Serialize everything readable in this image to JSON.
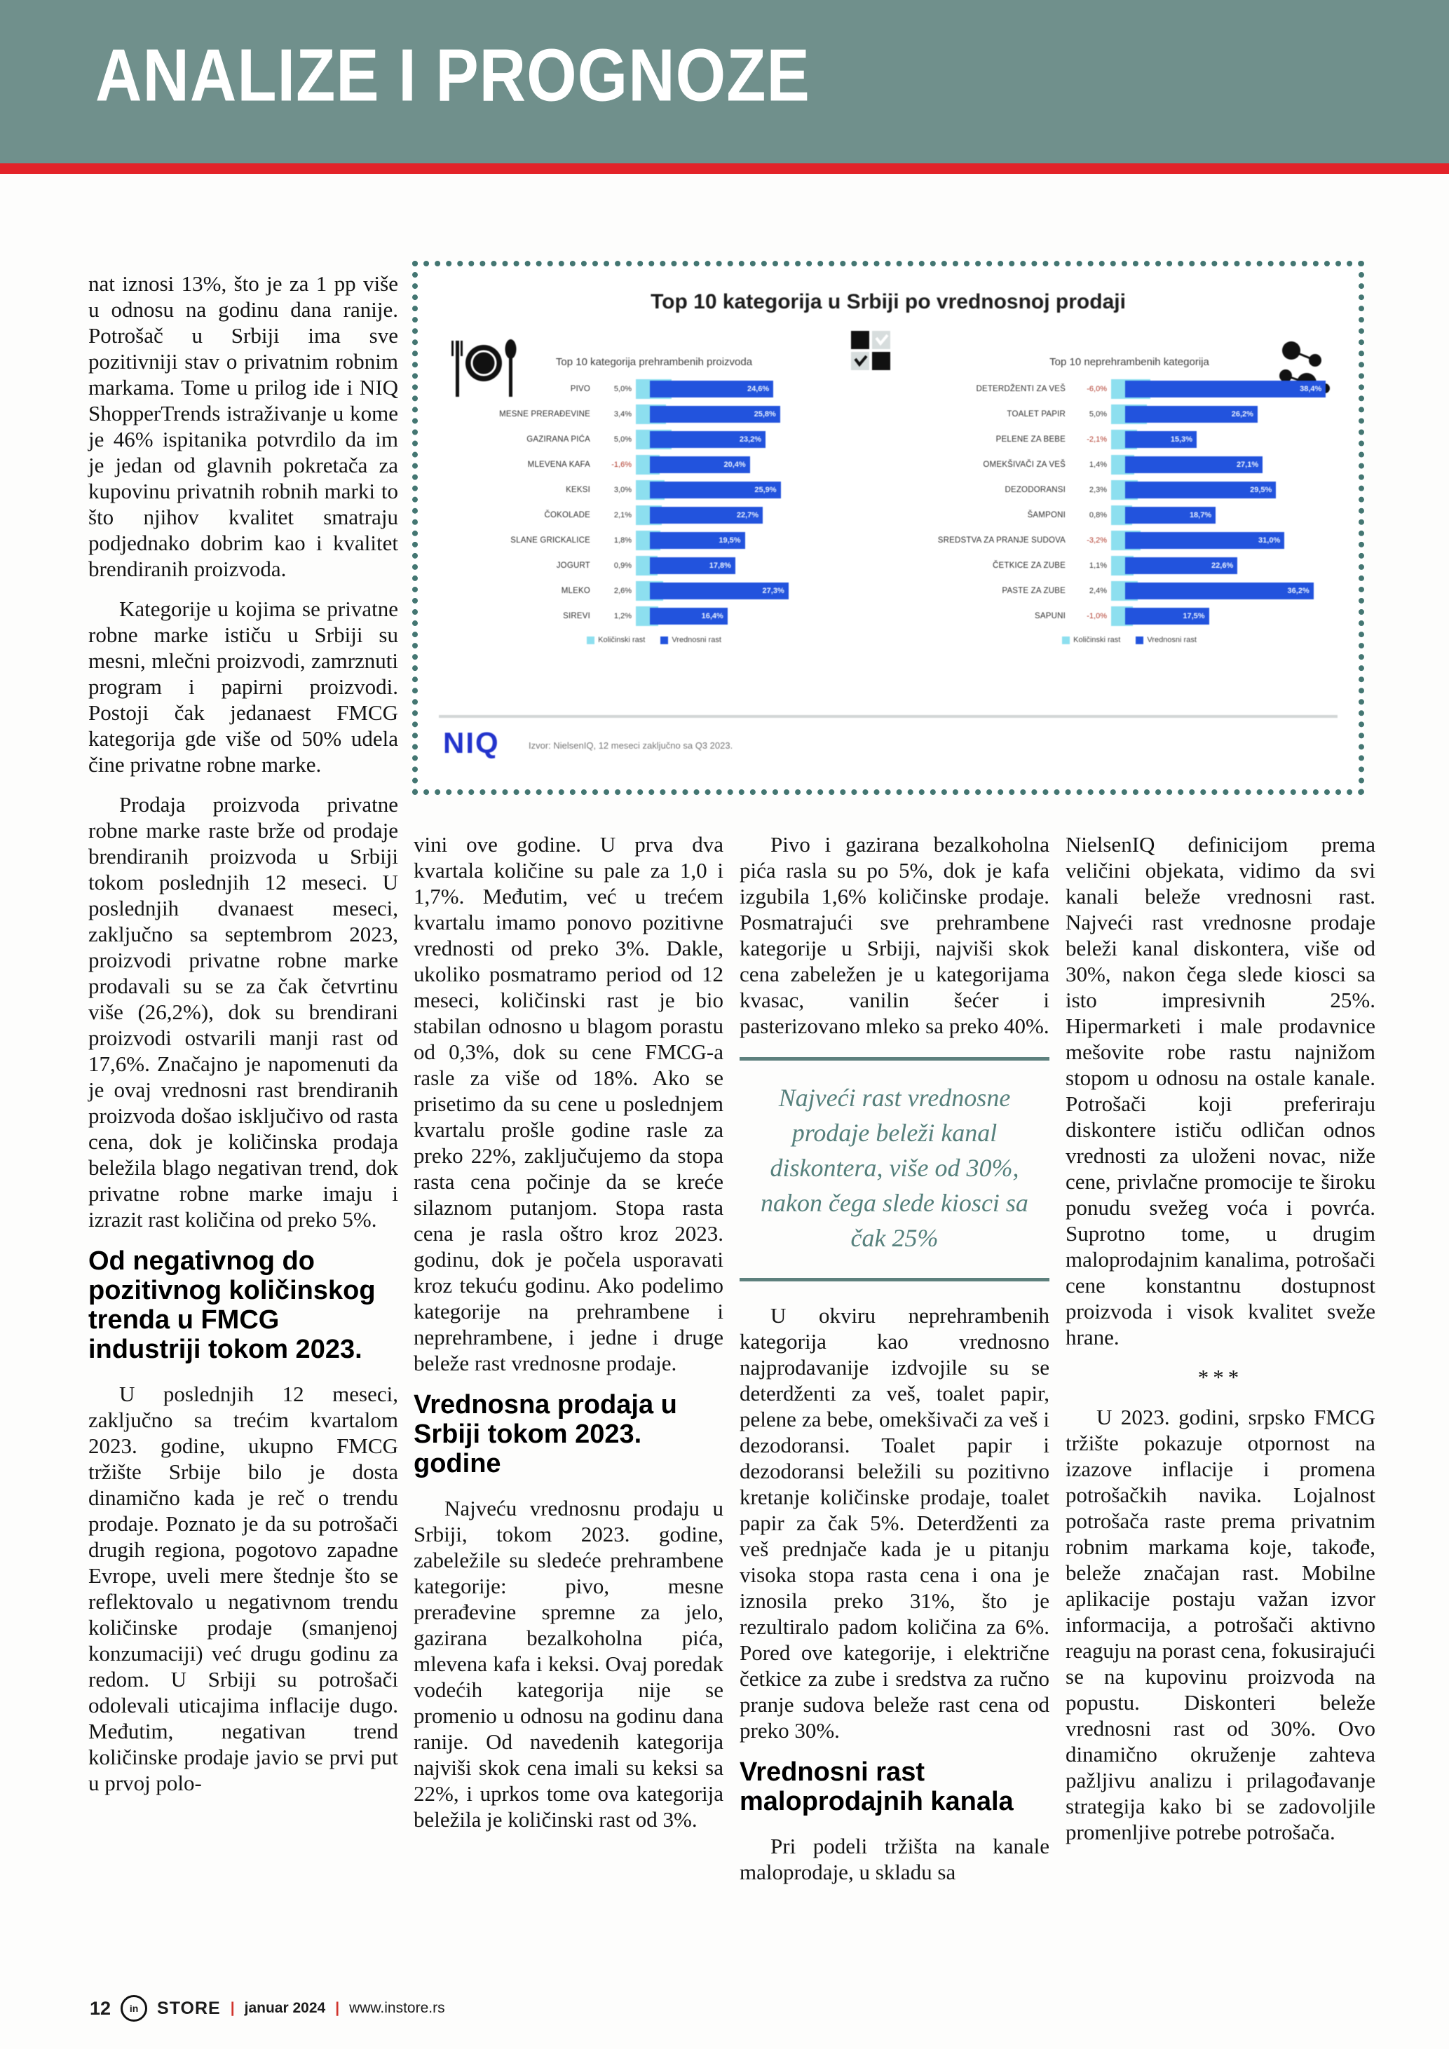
{
  "header": {
    "title": "ANALIZE I PROGNOZE"
  },
  "chart_panel": {
    "main_title": "Top 10 kategorija u Srbiji po vrednosnoj prodaji",
    "niq_logo": "NIQ",
    "source_text": "Izvor: NielsenIQ, 12 meseci zaključno sa Q3 2023.",
    "colors": {
      "volume_bar": "#8ddfef",
      "value_bar": "#2253dd",
      "border": "#447672",
      "accent_red": "#e32329",
      "masthead": "#70908c",
      "quote": "#56807c"
    }
  },
  "chart_data": [
    {
      "type": "bar",
      "orientation": "horizontal",
      "title": "Top 10 kategorija prehrambenih proizvoda",
      "xlim": [
        0,
        42
      ],
      "categories": [
        "PIVO",
        "MESNE PRERAĐEVINE",
        "GAZIRANA PIĆA",
        "MLEVENA KAFA",
        "KEKSI",
        "ČOKOLADE",
        "SLANE GRICKALICE",
        "JOGURT",
        "MLEKO",
        "SIREVI"
      ],
      "series": [
        {
          "name": "Količinski rast",
          "color": "#8ddfef",
          "values": [
            5.0,
            3.4,
            5.0,
            -1.6,
            3.0,
            2.1,
            1.8,
            0.9,
            2.6,
            1.2
          ]
        },
        {
          "name": "Vrednosni rast",
          "color": "#2253dd",
          "values": [
            24.6,
            25.8,
            23.2,
            20.4,
            25.9,
            22.7,
            19.5,
            17.8,
            27.3,
            16.4
          ]
        }
      ],
      "legend_position": "bottom",
      "grid": false
    },
    {
      "type": "bar",
      "orientation": "horizontal",
      "title": "Top 10 neprehrambenih kategorija",
      "xlim": [
        0,
        42
      ],
      "categories": [
        "DETERDŽENTI ZA VEŠ",
        "TOALET PAPIR",
        "PELENE ZA BEBE",
        "OMEKŠIVAČI ZA VEŠ",
        "DEZODORANSI",
        "ŠAMPONI",
        "SREDSTVA ZA PRANJE SUDOVA",
        "ČETKICE ZA ZUBE",
        "PASTE ZA ZUBE",
        "SAPUNI"
      ],
      "series": [
        {
          "name": "Količinski rast",
          "color": "#8ddfef",
          "values": [
            -6.0,
            5.0,
            -2.1,
            1.4,
            2.3,
            0.8,
            -3.2,
            1.1,
            2.4,
            -1.0
          ]
        },
        {
          "name": "Vrednosni rast",
          "color": "#2253dd",
          "values": [
            38.4,
            26.2,
            15.3,
            27.1,
            29.5,
            18.7,
            31.0,
            22.6,
            36.2,
            17.5
          ]
        }
      ],
      "legend_position": "bottom",
      "grid": false
    }
  ],
  "article": {
    "col1": {
      "p1": "nat iznosi 13%, što je za 1 pp više u odnosu na godinu dana ranije. Potrošač u Srbiji ima sve pozitivniji stav o privatnim robnim markama. Tome u prilog ide i NIQ ShopperTrends istraživanje u kome je 46% ispitanika potvrdilo da im je jedan od glavnih pokretača za kupovinu privatnih robnih marki to što njihov kvalitet smatraju podjednako dobrim kao i kvalitet brendiranih proizvoda.",
      "p2": "Kategorije u kojima se privatne robne marke ističu u Srbiji su mesni, mlečni proizvodi, zamrznuti program i papirni proizvodi. Postoji čak jedanaest FMCG kategorija gde više od 50% udela čine privatne robne marke.",
      "p3": "Prodaja proizvoda privatne robne marke raste brže od prodaje brendiranih proizvoda u Srbiji tokom poslednjih 12 meseci. U poslednjih dvanaest meseci, zaključno sa septembrom 2023, proizvodi privatne robne marke prodavali su se za čak četvrtinu više (26,2%), dok su brendirani proizvodi ostvarili manji rast od 17,6%. Značajno je napomenuti da je ovaj vrednosni rast brendiranih proizvoda došao isključivo od rasta cena, dok je količinska prodaja beležila blago negativan trend, dok privatne robne marke imaju i izrazit rast količina od preko 5%.",
      "heading": "Od negativnog do pozitivnog količinskog trenda u FMCG industriji tokom 2023.",
      "p4": "U poslednjih 12 meseci, zaključno sa trećim kvartalom 2023. godine, ukupno FMCG tržište Srbije bilo je dosta dinamično kada je reč o trendu prodaje. Poznato je da su potrošači drugih regiona, pogotovo zapadne Evrope, uveli mere štednje što se reflektovalo u negativnom trendu količinske prodaje (smanjenoj konzumaciji) već drugu godinu za redom. U Srbiji su potrošači odolevali uticajima inflacije dugo. Međutim, negativan trend količinske prodaje javio se prvi put u prvoj polo-"
    },
    "col2": {
      "p1": "vini ove godine. U prva dva kvartala količine su pale za 1,0 i 1,7%. Međutim, već u trećem kvartalu imamo ponovo pozitivne vrednosti od preko 3%. Dakle, ukoliko posmatramo period od 12 meseci, količinski rast je bio stabilan odnosno u blagom porastu od 0,3%, dok su cene FMCG-a rasle za više od 18%. Ako se prisetimo da su cene u poslednjem kvartalu prošle godine rasle za preko 22%, zaključujemo da stopa rasta cena počinje da se kreće silaznom putanjom. Stopa rasta cena je rasla oštro kroz 2023. godinu, dok je počela usporavati kroz tekuću godinu. Ako podelimo kategorije na prehrambene i neprehrambene, i jedne i druge beleže rast vrednosne prodaje.",
      "heading": "Vrednosna prodaja u Srbiji tokom 2023. godine",
      "p2": "Najveću vrednosnu prodaju u Srbiji, tokom 2023. godine, zabeležile su sledeće prehrambene kategorije: pivo, mesne prerađevine spremne za jelo, gazirana bezalkoholna pića, mlevena kafa i keksi. Ovaj poredak vodećih kategorija nije se promenio u odnosu na godinu dana ranije. Od navedenih kategorija najviši skok cena imali su keksi sa 22%, i uprkos tome ova kategorija beležila je količinski rast od 3%."
    },
    "col3": {
      "p1": "Pivo i gazirana bezalkoholna pića rasla su po 5%, dok je kafa izgubila 1,6% količinske prodaje. Posmatrajući sve prehrambene kategorije u Srbiji, najviši skok cena zabeležen je u kategorijama kvasac, vanilin šećer i pasterizovano mleko sa preko 40%.",
      "quote": "Najveći rast vrednosne prodaje beleži kanal diskontera, više od 30%, nakon čega slede kiosci sa čak 25%",
      "p2": "U okviru neprehrambenih kategorija kao vrednosno najprodavanije izdvojile su se deterdženti za veš, toalet papir, pelene za bebe, omekšivači za veš i dezodoransi. Toalet papir i dezodoransi beležili su pozitivno kretanje količinske prodaje, toalet papir za čak 5%. Deterdženti za veš prednjače kada je u pitanju visoka stopa rasta cena i ona je iznosila preko 31%, što je rezultiralo padom količina za 6%. Pored ove kategorije, i električne četkice za zube i sredstva za ručno pranje sudova beleže rast cena od preko 30%.",
      "heading": "Vrednosni rast maloprodajnih kanala",
      "p3": "Pri podeli tržišta na kanale maloprodaje, u skladu sa"
    },
    "col4": {
      "p1": "NielsenIQ definicijom prema veličini objekata, vidimo da svi kanali beleže vrednosni rast. Najveći rast vrednosne prodaje beleži kanal diskontera, više od 30%, nakon čega slede kiosci sa isto impresivnih 25%. Hipermarketi i male prodavnice mešovite robe rastu najnižom stopom u odnosu na ostale kanale. Potrošači koji preferiraju diskontere ističu odličan odnos vrednosti za uloženi novac, niže cene, privlačne promocije te široku ponudu svežeg voća i povrća. Suprotno tome, u drugim maloprodajnim kanalima, potrošači cene konstantnu dostupnost proizvoda i visok kvalitet sveže hrane.",
      "separator": "***",
      "p2": "U 2023. godini, srpsko FMCG tržište pokazuje otpornost na izazove inflacije i promena potrošačkih navika. Lojalnost potrošača raste prema privatnim robnim markama koje, takođe, beleže značajan rast. Mobilne aplikacije postaju važan izvor informacija, a potrošači aktivno reaguju na porast cena, fokusirajući se na kupovinu proizvoda na popustu. Diskonteri beleže vrednosni rast od 30%. Ovo dinamično okruženje zahteva pažljivu analizu i prilagođavanje strategija kako bi se zadovoljile promenljive potrebe potrošača."
    }
  },
  "footer": {
    "page_number": "12",
    "logo_in": "in",
    "brand": "STORE",
    "issue": "januar 2024",
    "website": "www.instore.rs",
    "separator": "|"
  }
}
